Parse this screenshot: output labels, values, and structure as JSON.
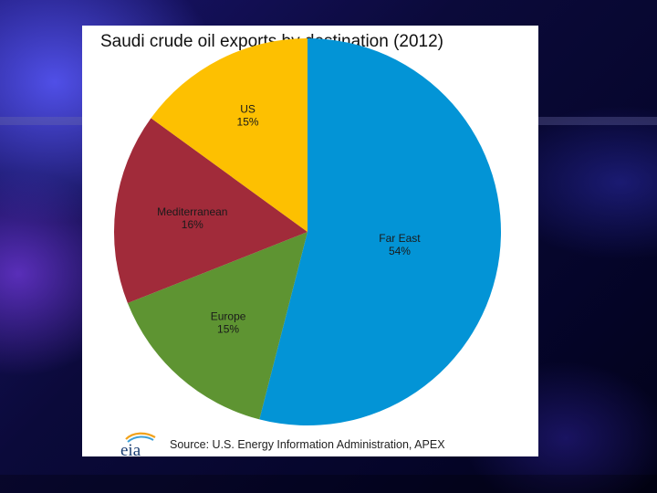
{
  "chart_data": {
    "type": "pie",
    "title": "Saudi crude oil exports by destination (2012)",
    "slices": [
      {
        "label": "Far East",
        "value": 54,
        "display": "54%",
        "color": "#0394d6"
      },
      {
        "label": "Europe",
        "value": 15,
        "display": "15%",
        "color": "#5e9432"
      },
      {
        "label": "Mediterranean",
        "value": 16,
        "display": "16%",
        "color": "#a12b3a"
      },
      {
        "label": "US",
        "value": 15,
        "display": "15%",
        "color": "#fdc001"
      }
    ],
    "start_angle_deg": 0,
    "direction": "clockwise"
  },
  "footer": {
    "logo_text": "eia",
    "source": "Source: U.S. Energy Information Administration, APEX"
  }
}
